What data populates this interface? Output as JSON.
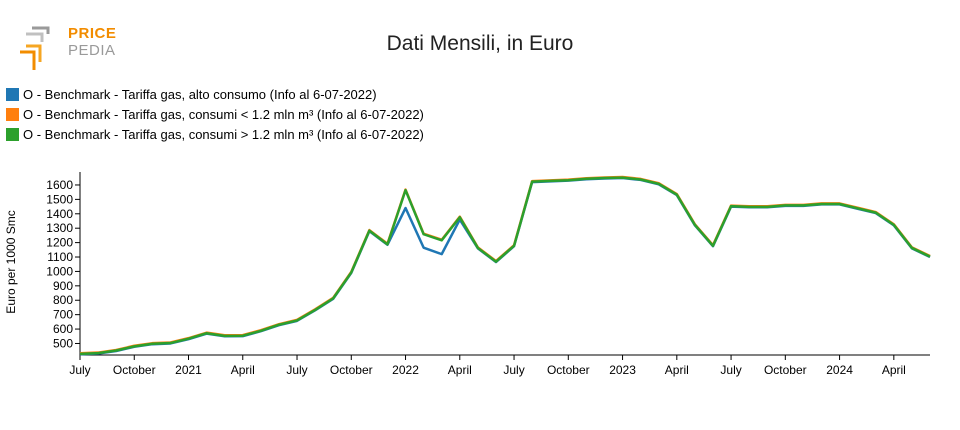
{
  "logo": {
    "line1": "PRICE",
    "line2": "PEDIA"
  },
  "chart_data": {
    "type": "line",
    "title": "Dati Mensili, in Euro",
    "ylabel": "Euro per 1000 Smc",
    "xlabel": "",
    "ylim": [
      420,
      1690
    ],
    "y_ticks": [
      500,
      600,
      700,
      800,
      900,
      1000,
      1100,
      1200,
      1300,
      1400,
      1500,
      1600
    ],
    "x": [
      "2020-07",
      "2020-08",
      "2020-09",
      "2020-10",
      "2020-11",
      "2020-12",
      "2021-01",
      "2021-02",
      "2021-03",
      "2021-04",
      "2021-05",
      "2021-06",
      "2021-07",
      "2021-08",
      "2021-09",
      "2021-10",
      "2021-11",
      "2021-12",
      "2022-01",
      "2022-02",
      "2022-03",
      "2022-04",
      "2022-05",
      "2022-06",
      "2022-07",
      "2022-08",
      "2022-09",
      "2022-10",
      "2022-11",
      "2022-12",
      "2023-01",
      "2023-02",
      "2023-03",
      "2023-04",
      "2023-05",
      "2023-06",
      "2023-07",
      "2023-08",
      "2023-09",
      "2023-10",
      "2023-11",
      "2023-12",
      "2024-01",
      "2024-02",
      "2024-03",
      "2024-04",
      "2024-05",
      "2024-06"
    ],
    "x_ticks": [
      {
        "x": "2020-07",
        "label": "July"
      },
      {
        "x": "2020-10",
        "label": "October"
      },
      {
        "x": "2021-01",
        "label": "2021"
      },
      {
        "x": "2021-04",
        "label": "April"
      },
      {
        "x": "2021-07",
        "label": "July"
      },
      {
        "x": "2021-10",
        "label": "October"
      },
      {
        "x": "2022-01",
        "label": "2022"
      },
      {
        "x": "2022-04",
        "label": "April"
      },
      {
        "x": "2022-07",
        "label": "July"
      },
      {
        "x": "2022-10",
        "label": "October"
      },
      {
        "x": "2023-01",
        "label": "2023"
      },
      {
        "x": "2023-04",
        "label": "April"
      },
      {
        "x": "2023-07",
        "label": "July"
      },
      {
        "x": "2023-10",
        "label": "October"
      },
      {
        "x": "2024-01",
        "label": "2024"
      },
      {
        "x": "2024-04",
        "label": "April"
      }
    ],
    "series": [
      {
        "name": "O - Benchmark - Tariffa gas, alto consumo (Info al 6-07-2022)",
        "color": "#1f77b4",
        "values": [
          425,
          430,
          448,
          477,
          495,
          500,
          530,
          568,
          550,
          551,
          585,
          627,
          657,
          730,
          810,
          990,
          1280,
          1185,
          1440,
          1165,
          1120,
          1360,
          1160,
          1065,
          1175,
          1620,
          1625,
          1630,
          1640,
          1645,
          1648,
          1635,
          1605,
          1530,
          1320,
          1175,
          1450,
          1445,
          1445,
          1455,
          1455,
          1465,
          1465,
          1435,
          1405,
          1320,
          1160,
          1100
        ]
      },
      {
        "name": "O - Benchmark - Tariffa gas, consumi < 1.2 mln m³ (Info al 6-07-2022)",
        "color": "#ff7f0e",
        "values": [
          432,
          437,
          455,
          484,
          502,
          507,
          537,
          575,
          557,
          558,
          592,
          634,
          664,
          737,
          817,
          997,
          1287,
          1192,
          1568,
          1262,
          1220,
          1380,
          1167,
          1072,
          1182,
          1627,
          1632,
          1637,
          1647,
          1652,
          1655,
          1642,
          1612,
          1537,
          1327,
          1182,
          1457,
          1452,
          1452,
          1462,
          1462,
          1472,
          1472,
          1442,
          1412,
          1327,
          1167,
          1107
        ]
      },
      {
        "name": "O - Benchmark - Tariffa gas, consumi > 1.2 mln m³ (Info al 6-07-2022)",
        "color": "#2ca02c",
        "values": [
          428,
          433,
          451,
          480,
          498,
          503,
          533,
          571,
          553,
          554,
          588,
          630,
          660,
          733,
          813,
          993,
          1283,
          1188,
          1564,
          1258,
          1216,
          1376,
          1163,
          1068,
          1178,
          1623,
          1628,
          1633,
          1643,
          1648,
          1651,
          1638,
          1608,
          1533,
          1323,
          1178,
          1453,
          1448,
          1448,
          1458,
          1458,
          1468,
          1468,
          1438,
          1408,
          1323,
          1163,
          1103
        ]
      }
    ]
  }
}
